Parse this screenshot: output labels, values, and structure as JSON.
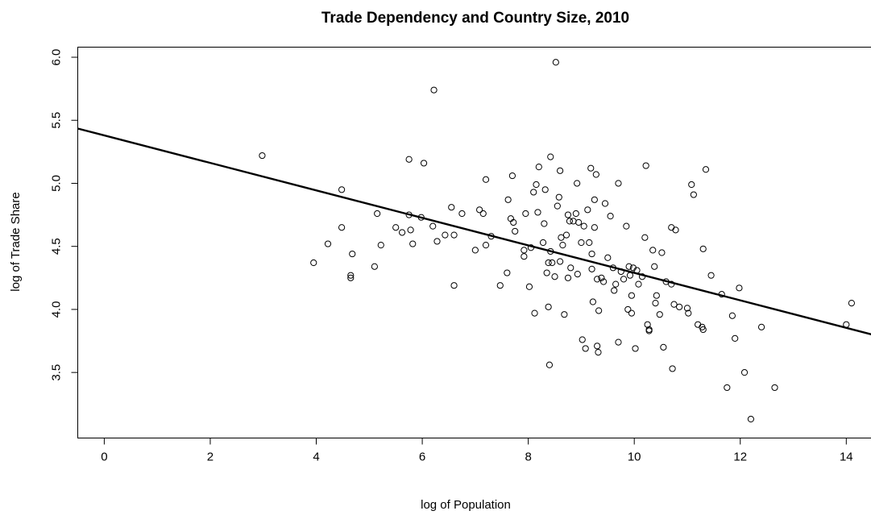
{
  "chart_data": {
    "type": "scatter",
    "title": "Trade Dependency and Country Size, 2010",
    "xlabel": "log of Population",
    "ylabel": "log of Trade Share",
    "xlim": [
      -0.5,
      14.55
    ],
    "ylim": [
      2.98,
      6.08
    ],
    "xticks": [
      0,
      2,
      4,
      6,
      8,
      10,
      12,
      14
    ],
    "xtick_labels": [
      "0",
      "2",
      "4",
      "6",
      "8",
      "10",
      "12",
      "14"
    ],
    "yticks": [
      3.5,
      4.0,
      4.5,
      5.0,
      5.5,
      6.0
    ],
    "ytick_labels": [
      "3.5",
      "4.0",
      "4.5",
      "5.0",
      "5.5",
      "6.0"
    ],
    "grid": false,
    "legend": "none",
    "regression_line": {
      "intercept": 5.38,
      "slope": -0.109
    },
    "points": [
      [
        2.98,
        5.22
      ],
      [
        3.95,
        4.37
      ],
      [
        4.22,
        4.52
      ],
      [
        4.48,
        4.95
      ],
      [
        4.48,
        4.65
      ],
      [
        4.65,
        4.27
      ],
      [
        4.65,
        4.25
      ],
      [
        4.68,
        4.44
      ],
      [
        5.1,
        4.34
      ],
      [
        5.15,
        4.76
      ],
      [
        5.22,
        4.51
      ],
      [
        5.5,
        4.65
      ],
      [
        5.62,
        4.61
      ],
      [
        5.75,
        5.19
      ],
      [
        5.75,
        4.75
      ],
      [
        5.78,
        4.63
      ],
      [
        5.82,
        4.52
      ],
      [
        5.98,
        4.73
      ],
      [
        6.03,
        5.16
      ],
      [
        6.2,
        4.66
      ],
      [
        6.22,
        5.74
      ],
      [
        6.28,
        4.54
      ],
      [
        6.43,
        4.59
      ],
      [
        6.55,
        4.81
      ],
      [
        6.6,
        4.59
      ],
      [
        6.6,
        4.19
      ],
      [
        6.75,
        4.76
      ],
      [
        7.0,
        4.47
      ],
      [
        7.08,
        4.79
      ],
      [
        7.15,
        4.76
      ],
      [
        7.2,
        5.03
      ],
      [
        7.2,
        4.51
      ],
      [
        7.3,
        4.58
      ],
      [
        7.47,
        4.19
      ],
      [
        7.6,
        4.29
      ],
      [
        7.62,
        4.87
      ],
      [
        7.67,
        4.72
      ],
      [
        7.7,
        5.06
      ],
      [
        7.72,
        4.69
      ],
      [
        7.75,
        4.62
      ],
      [
        7.92,
        4.42
      ],
      [
        7.92,
        4.47
      ],
      [
        7.95,
        4.76
      ],
      [
        8.02,
        4.18
      ],
      [
        8.05,
        4.49
      ],
      [
        8.1,
        4.93
      ],
      [
        8.12,
        3.97
      ],
      [
        8.15,
        4.99
      ],
      [
        8.18,
        4.77
      ],
      [
        8.2,
        5.13
      ],
      [
        8.28,
        4.53
      ],
      [
        8.3,
        4.68
      ],
      [
        8.32,
        4.95
      ],
      [
        8.35,
        4.29
      ],
      [
        8.38,
        4.02
      ],
      [
        8.38,
        4.37
      ],
      [
        8.4,
        3.56
      ],
      [
        8.42,
        5.21
      ],
      [
        8.42,
        4.46
      ],
      [
        8.45,
        4.37
      ],
      [
        8.5,
        4.26
      ],
      [
        8.52,
        5.96
      ],
      [
        8.55,
        4.82
      ],
      [
        8.58,
        4.89
      ],
      [
        8.6,
        5.1
      ],
      [
        8.6,
        4.38
      ],
      [
        8.62,
        4.57
      ],
      [
        8.65,
        4.51
      ],
      [
        8.68,
        3.96
      ],
      [
        8.72,
        4.59
      ],
      [
        8.75,
        4.25
      ],
      [
        8.75,
        4.75
      ],
      [
        8.78,
        4.7
      ],
      [
        8.8,
        4.33
      ],
      [
        8.85,
        4.7
      ],
      [
        8.9,
        4.76
      ],
      [
        8.92,
        5.0
      ],
      [
        8.93,
        4.28
      ],
      [
        8.95,
        4.69
      ],
      [
        9.0,
        4.53
      ],
      [
        9.02,
        3.76
      ],
      [
        9.05,
        4.66
      ],
      [
        9.08,
        3.69
      ],
      [
        9.12,
        4.79
      ],
      [
        9.15,
        4.53
      ],
      [
        9.18,
        5.12
      ],
      [
        9.2,
        4.32
      ],
      [
        9.2,
        4.44
      ],
      [
        9.22,
        4.06
      ],
      [
        9.25,
        4.87
      ],
      [
        9.25,
        4.65
      ],
      [
        9.28,
        5.07
      ],
      [
        9.3,
        4.24
      ],
      [
        9.3,
        3.71
      ],
      [
        9.32,
        3.66
      ],
      [
        9.33,
        3.99
      ],
      [
        9.38,
        4.25
      ],
      [
        9.42,
        4.22
      ],
      [
        9.45,
        4.84
      ],
      [
        9.5,
        4.41
      ],
      [
        9.55,
        4.74
      ],
      [
        9.6,
        4.33
      ],
      [
        9.62,
        4.15
      ],
      [
        9.65,
        4.2
      ],
      [
        9.7,
        5.0
      ],
      [
        9.7,
        3.74
      ],
      [
        9.75,
        4.3
      ],
      [
        9.8,
        4.24
      ],
      [
        9.85,
        4.66
      ],
      [
        9.88,
        4.0
      ],
      [
        9.9,
        4.34
      ],
      [
        9.92,
        4.27
      ],
      [
        9.95,
        3.97
      ],
      [
        9.95,
        4.11
      ],
      [
        9.98,
        4.33
      ],
      [
        10.02,
        3.69
      ],
      [
        10.05,
        4.31
      ],
      [
        10.08,
        4.2
      ],
      [
        10.15,
        4.26
      ],
      [
        10.2,
        4.57
      ],
      [
        10.22,
        5.14
      ],
      [
        10.25,
        3.88
      ],
      [
        10.28,
        3.84
      ],
      [
        10.28,
        3.83
      ],
      [
        10.35,
        4.47
      ],
      [
        10.38,
        4.34
      ],
      [
        10.4,
        4.05
      ],
      [
        10.42,
        4.11
      ],
      [
        10.48,
        3.96
      ],
      [
        10.52,
        4.45
      ],
      [
        10.55,
        3.7
      ],
      [
        10.6,
        4.22
      ],
      [
        10.7,
        4.65
      ],
      [
        10.7,
        4.2
      ],
      [
        10.72,
        3.53
      ],
      [
        10.75,
        4.04
      ],
      [
        10.78,
        4.63
      ],
      [
        10.85,
        4.02
      ],
      [
        11.0,
        4.01
      ],
      [
        11.02,
        3.97
      ],
      [
        11.08,
        4.99
      ],
      [
        11.12,
        4.91
      ],
      [
        11.2,
        3.88
      ],
      [
        11.28,
        3.86
      ],
      [
        11.3,
        3.84
      ],
      [
        11.3,
        4.48
      ],
      [
        11.35,
        5.11
      ],
      [
        11.45,
        4.27
      ],
      [
        11.65,
        4.12
      ],
      [
        11.75,
        3.38
      ],
      [
        11.85,
        3.95
      ],
      [
        11.9,
        3.77
      ],
      [
        11.98,
        4.17
      ],
      [
        12.08,
        3.5
      ],
      [
        12.2,
        3.13
      ],
      [
        12.4,
        3.86
      ],
      [
        12.65,
        3.38
      ],
      [
        14.0,
        3.88
      ],
      [
        14.1,
        4.05
      ]
    ]
  }
}
